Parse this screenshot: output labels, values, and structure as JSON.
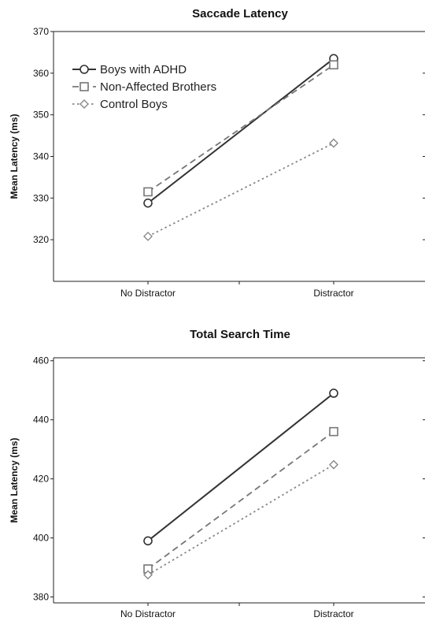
{
  "chart_data": [
    {
      "type": "line",
      "title": "Saccade Latency",
      "ylabel": "Mean Latency (ms)",
      "xlabel": "",
      "categories": [
        "No Distractor",
        "Distractor"
      ],
      "ylim": [
        310,
        370
      ],
      "yticks": [
        320,
        330,
        340,
        350,
        360,
        370
      ],
      "grid": false,
      "legend_position": "top-left",
      "series": [
        {
          "name": "Boys with ADHD",
          "values": [
            328.8,
            363.5
          ],
          "color": "#333333",
          "dash": "solid",
          "marker": "circle"
        },
        {
          "name": "Non-Affected Brothers",
          "values": [
            331.5,
            362.0
          ],
          "color": "#777777",
          "dash": "dashed",
          "marker": "square"
        },
        {
          "name": "Control Boys",
          "values": [
            320.8,
            343.2
          ],
          "color": "#888888",
          "dash": "dotted",
          "marker": "diamond"
        }
      ]
    },
    {
      "type": "line",
      "title": "Total Search Time",
      "ylabel": "Mean Latency (ms)",
      "xlabel": "",
      "categories": [
        "No Distractor",
        "Distractor"
      ],
      "ylim": [
        378,
        461
      ],
      "yticks": [
        380,
        400,
        420,
        440,
        460
      ],
      "grid": false,
      "legend_position": "none",
      "series": [
        {
          "name": "Boys with ADHD",
          "values": [
            399.0,
            449.0
          ],
          "color": "#333333",
          "dash": "solid",
          "marker": "circle"
        },
        {
          "name": "Non-Affected Brothers",
          "values": [
            389.5,
            436.0
          ],
          "color": "#777777",
          "dash": "dashed",
          "marker": "square"
        },
        {
          "name": "Control Boys",
          "values": [
            387.5,
            424.8
          ],
          "color": "#888888",
          "dash": "dotted",
          "marker": "diamond"
        }
      ]
    }
  ]
}
